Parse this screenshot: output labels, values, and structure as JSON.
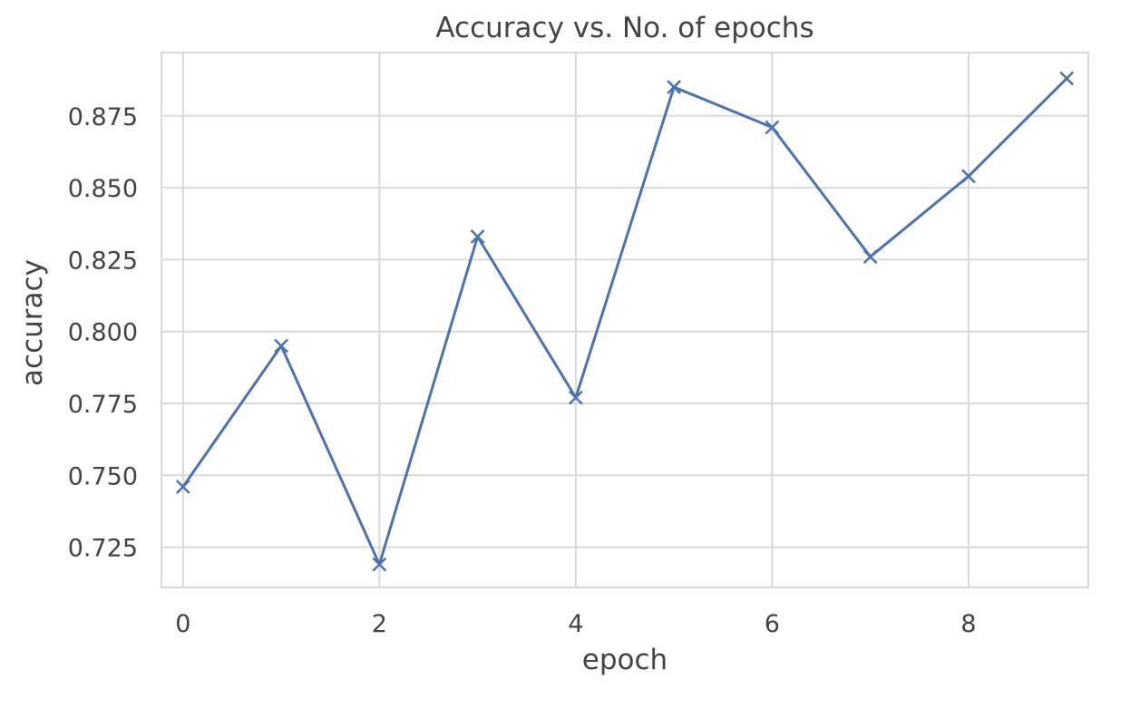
{
  "chart_data": {
    "type": "line",
    "title": "Accuracy vs. No. of epochs",
    "xlabel": "epoch",
    "ylabel": "accuracy",
    "x": [
      0,
      1,
      2,
      3,
      4,
      5,
      6,
      7,
      8,
      9
    ],
    "series": [
      {
        "values": [
          0.746,
          0.795,
          0.719,
          0.833,
          0.777,
          0.885,
          0.871,
          0.826,
          0.854,
          0.888
        ],
        "color": "#4c72b0",
        "marker": "x"
      }
    ],
    "xlim": [
      -0.22,
      9.22
    ],
    "ylim": [
      0.711,
      0.897
    ],
    "xticks": [
      0,
      2,
      4,
      6,
      8
    ],
    "yticks": [
      0.725,
      0.75,
      0.775,
      0.8,
      0.825,
      0.85,
      0.875
    ],
    "ytick_labels": [
      "0.725",
      "0.750",
      "0.775",
      "0.800",
      "0.825",
      "0.850",
      "0.875"
    ],
    "grid": true,
    "grid_color": "#d9d9d9",
    "text_color": "#444444"
  }
}
